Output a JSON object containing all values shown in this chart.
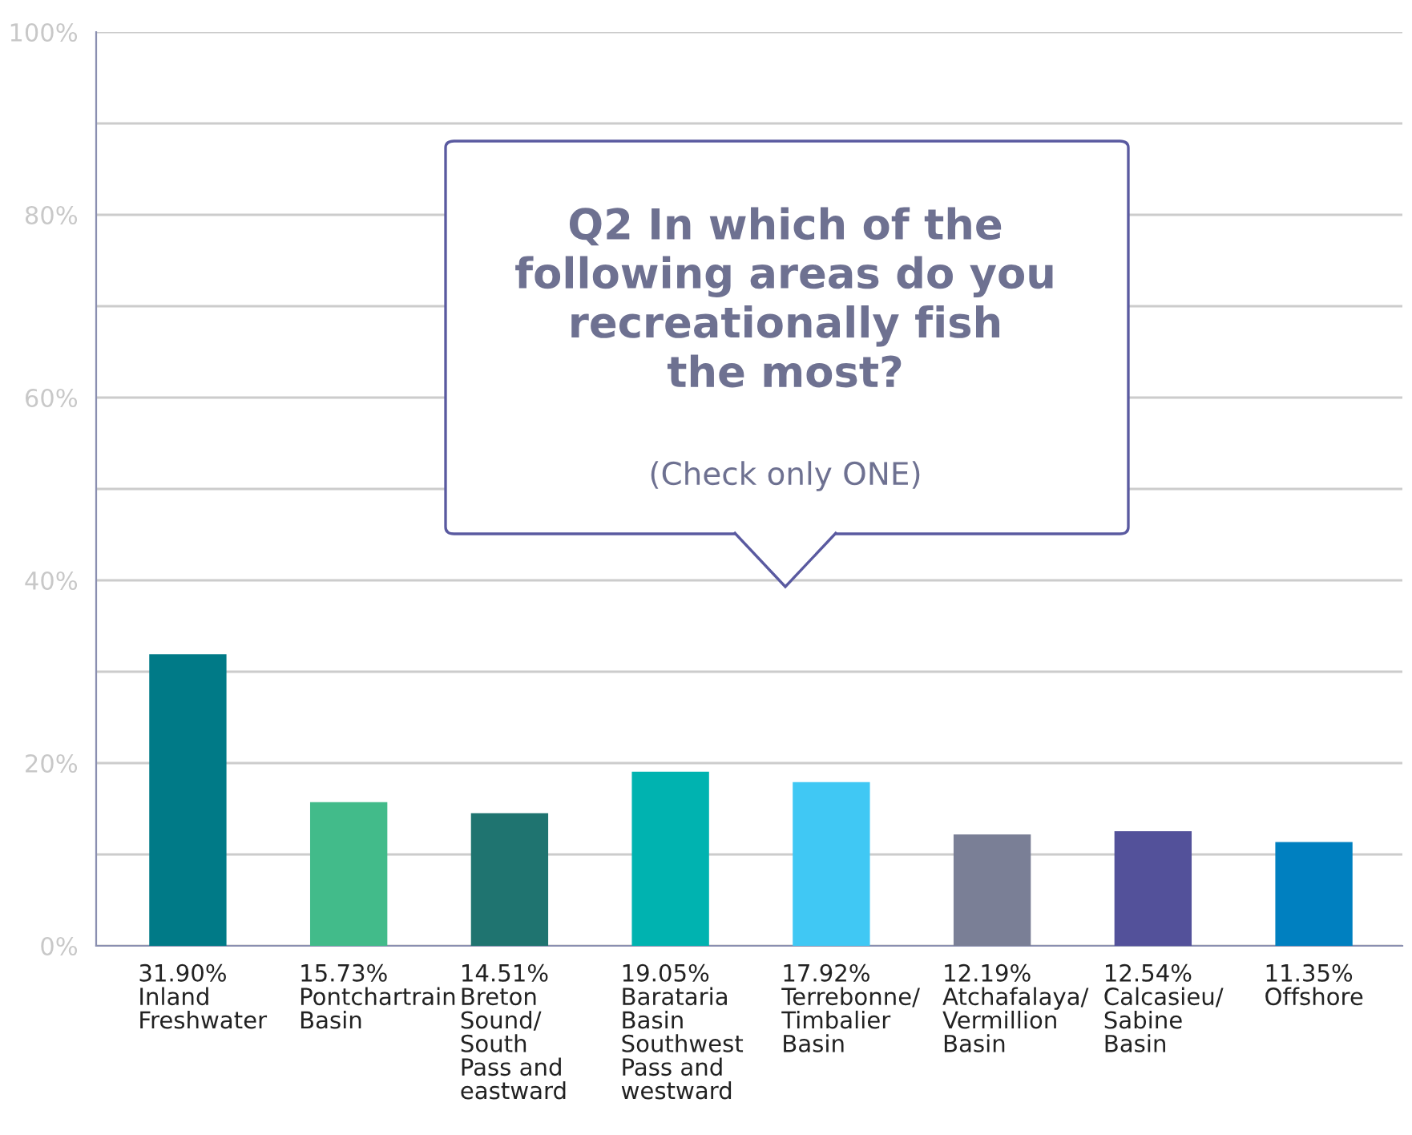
{
  "chart_data": {
    "type": "bar",
    "title": "Q2 In which of the\nfollowing areas do you\nrecreationally fish\nthe most?",
    "subtitle": "(Check only ONE)",
    "categories": [
      "Inland\nFreshwater",
      "Pontchartrain\nBasin",
      "Breton\nSound/\nSouth\nPass and\neastward",
      "Barataria\nBasin\nSouthwest\nPass and\nwestward",
      "Terrebonne/\nTimbalier\nBasin",
      "Atchafalaya/\nVermillion\nBasin",
      "Calcasieu/\nSabine\nBasin",
      "Offshore"
    ],
    "values": [
      31.9,
      15.73,
      14.51,
      19.05,
      17.92,
      12.19,
      12.54,
      11.35
    ],
    "value_labels": [
      "31.90%",
      "15.73%",
      "14.51%",
      "19.05%",
      "17.92%",
      "12.19%",
      "12.54%",
      "11.35%"
    ],
    "colors": [
      "#007a87",
      "#42bb8a",
      "#1f7470",
      "#00b3b0",
      "#40c8f4",
      "#7a7f96",
      "#53519a",
      "#0080c0"
    ],
    "ylim": [
      0,
      100
    ],
    "yticks": [
      {
        "value": 0,
        "label": "0%"
      },
      {
        "value": 10,
        "label": null
      },
      {
        "value": 20,
        "label": "20%"
      },
      {
        "value": 30,
        "label": null
      },
      {
        "value": 40,
        "label": "40%"
      },
      {
        "value": 50,
        "label": null
      },
      {
        "value": 60,
        "label": "60%"
      },
      {
        "value": 70,
        "label": null
      },
      {
        "value": 80,
        "label": "80%"
      },
      {
        "value": 90,
        "label": null
      },
      {
        "value": 100,
        "label": "100%"
      }
    ],
    "grid": "y"
  }
}
